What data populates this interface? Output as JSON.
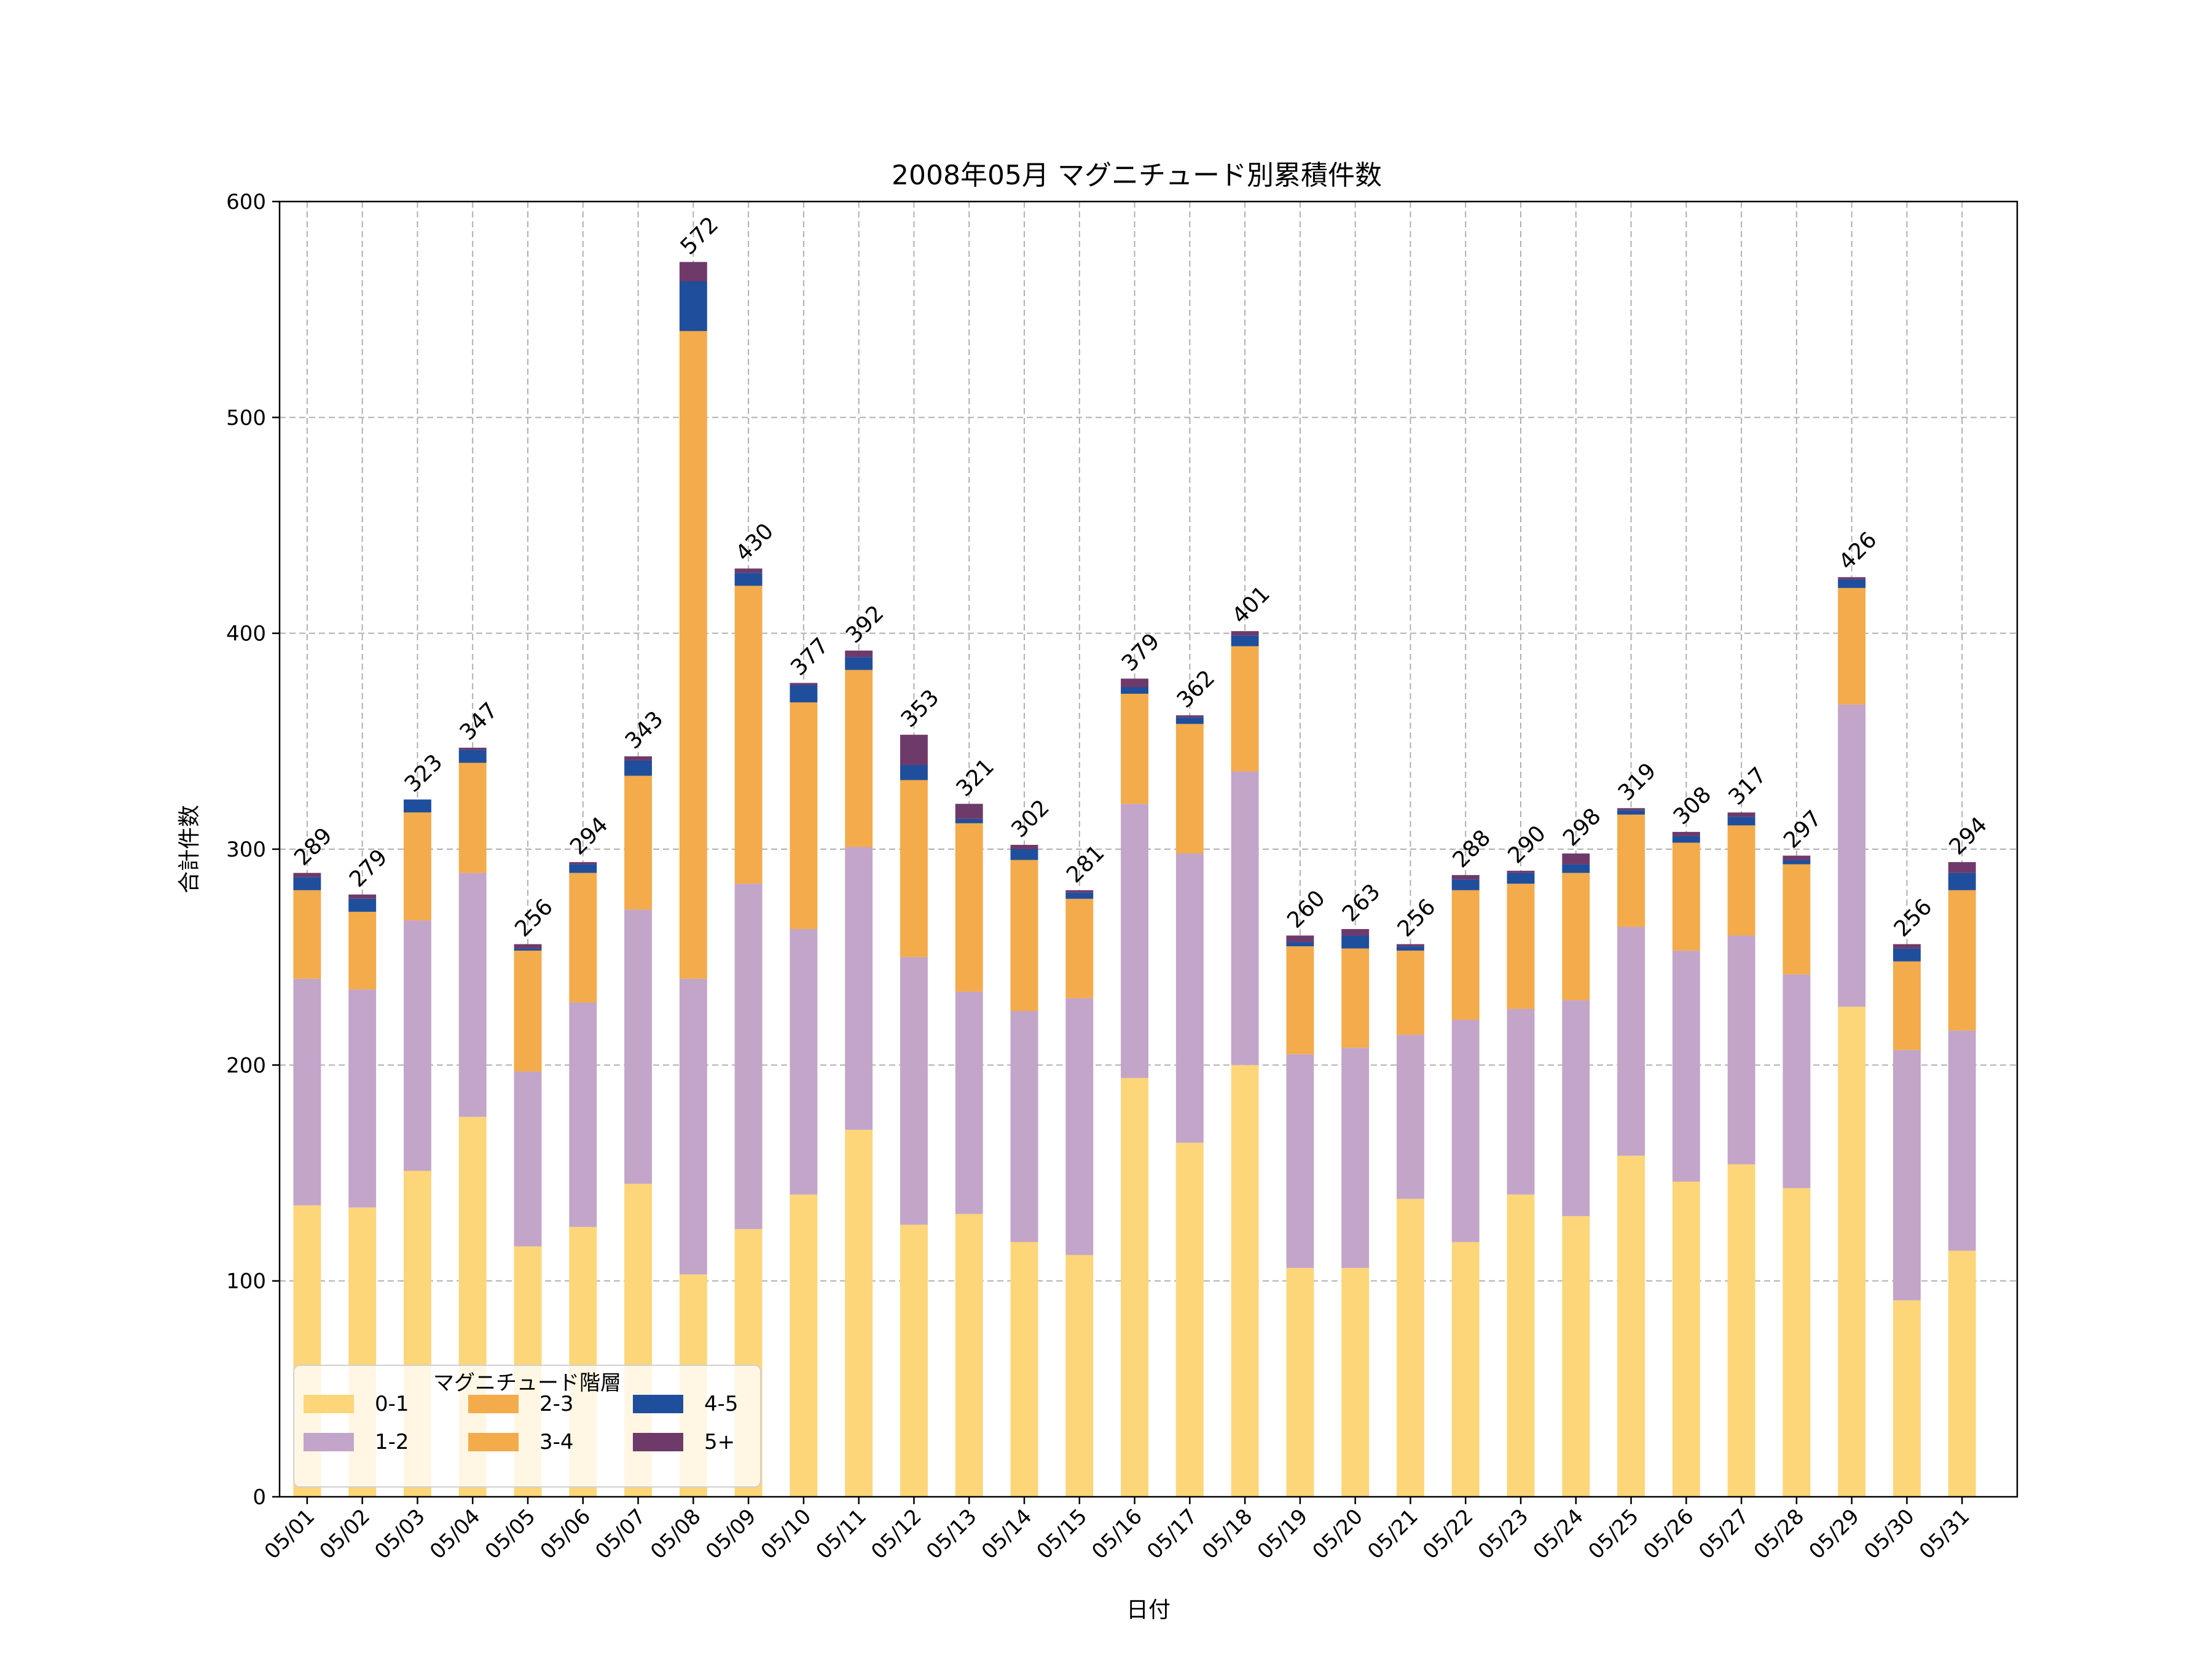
{
  "chart_data": {
    "type": "bar",
    "stacked": true,
    "title": "2008年05月 マグニチュード別累積件数",
    "xlabel": "日付",
    "ylabel": "合計件数",
    "ylim": [
      0,
      600
    ],
    "yticks": [
      0,
      100,
      200,
      300,
      400,
      500,
      600
    ],
    "grid": true,
    "legend": {
      "title": "マグニチュード階層",
      "placement": "lower-left",
      "columns": 3
    },
    "categories": [
      "05/01",
      "05/02",
      "05/03",
      "05/04",
      "05/05",
      "05/06",
      "05/07",
      "05/08",
      "05/09",
      "05/10",
      "05/11",
      "05/12",
      "05/13",
      "05/14",
      "05/15",
      "05/16",
      "05/17",
      "05/18",
      "05/19",
      "05/20",
      "05/21",
      "05/22",
      "05/23",
      "05/24",
      "05/25",
      "05/26",
      "05/27",
      "05/28",
      "05/29",
      "05/30",
      "05/31"
    ],
    "totals": [
      289,
      279,
      323,
      347,
      256,
      294,
      343,
      572,
      430,
      377,
      392,
      353,
      321,
      302,
      281,
      379,
      362,
      401,
      260,
      263,
      256,
      288,
      290,
      298,
      319,
      308,
      317,
      297,
      426,
      256,
      294
    ],
    "series": [
      {
        "name": "0-1",
        "color": "#fcd679",
        "values": [
          135,
          134,
          151,
          176,
          116,
          125,
          145,
          103,
          124,
          140,
          170,
          126,
          131,
          118,
          112,
          194,
          164,
          200,
          106,
          106,
          138,
          118,
          140,
          130,
          158,
          146,
          154,
          143,
          227,
          91,
          114
        ]
      },
      {
        "name": "1-2",
        "color": "#c3a5c9",
        "values": [
          105,
          101,
          116,
          113,
          81,
          104,
          127,
          137,
          160,
          123,
          131,
          124,
          103,
          107,
          119,
          127,
          134,
          136,
          99,
          102,
          76,
          103,
          86,
          100,
          106,
          107,
          106,
          99,
          140,
          116,
          102
        ]
      },
      {
        "name": "2-3",
        "color": "#f3ab4b",
        "values": [
          41,
          36,
          50,
          51,
          56,
          60,
          62,
          300,
          138,
          105,
          82,
          82,
          78,
          70,
          46,
          51,
          60,
          58,
          50,
          46,
          39,
          60,
          58,
          59,
          52,
          50,
          51,
          51,
          54,
          41,
          65
        ]
      },
      {
        "name": "3-4",
        "color": "#f3ab4b",
        "values": [
          0,
          0,
          0,
          0,
          0,
          0,
          0,
          0,
          0,
          0,
          0,
          0,
          0,
          0,
          0,
          0,
          0,
          0,
          0,
          0,
          0,
          0,
          0,
          0,
          0,
          0,
          0,
          0,
          0,
          0,
          0
        ]
      },
      {
        "name": "4-5",
        "color": "#1f4e9c",
        "values": [
          6,
          6,
          6,
          6,
          1,
          4,
          7,
          23,
          6,
          8,
          6,
          7,
          2,
          5,
          3,
          3,
          3,
          5,
          2,
          6,
          2,
          5,
          5,
          4,
          2,
          3,
          4,
          2,
          4,
          6,
          8
        ]
      },
      {
        "name": "5+",
        "color": "#6e3a6a",
        "values": [
          2,
          2,
          0,
          1,
          2,
          1,
          2,
          9,
          2,
          1,
          3,
          14,
          7,
          2,
          1,
          4,
          1,
          2,
          3,
          3,
          1,
          2,
          1,
          5,
          1,
          2,
          2,
          2,
          1,
          2,
          5
        ]
      }
    ]
  }
}
